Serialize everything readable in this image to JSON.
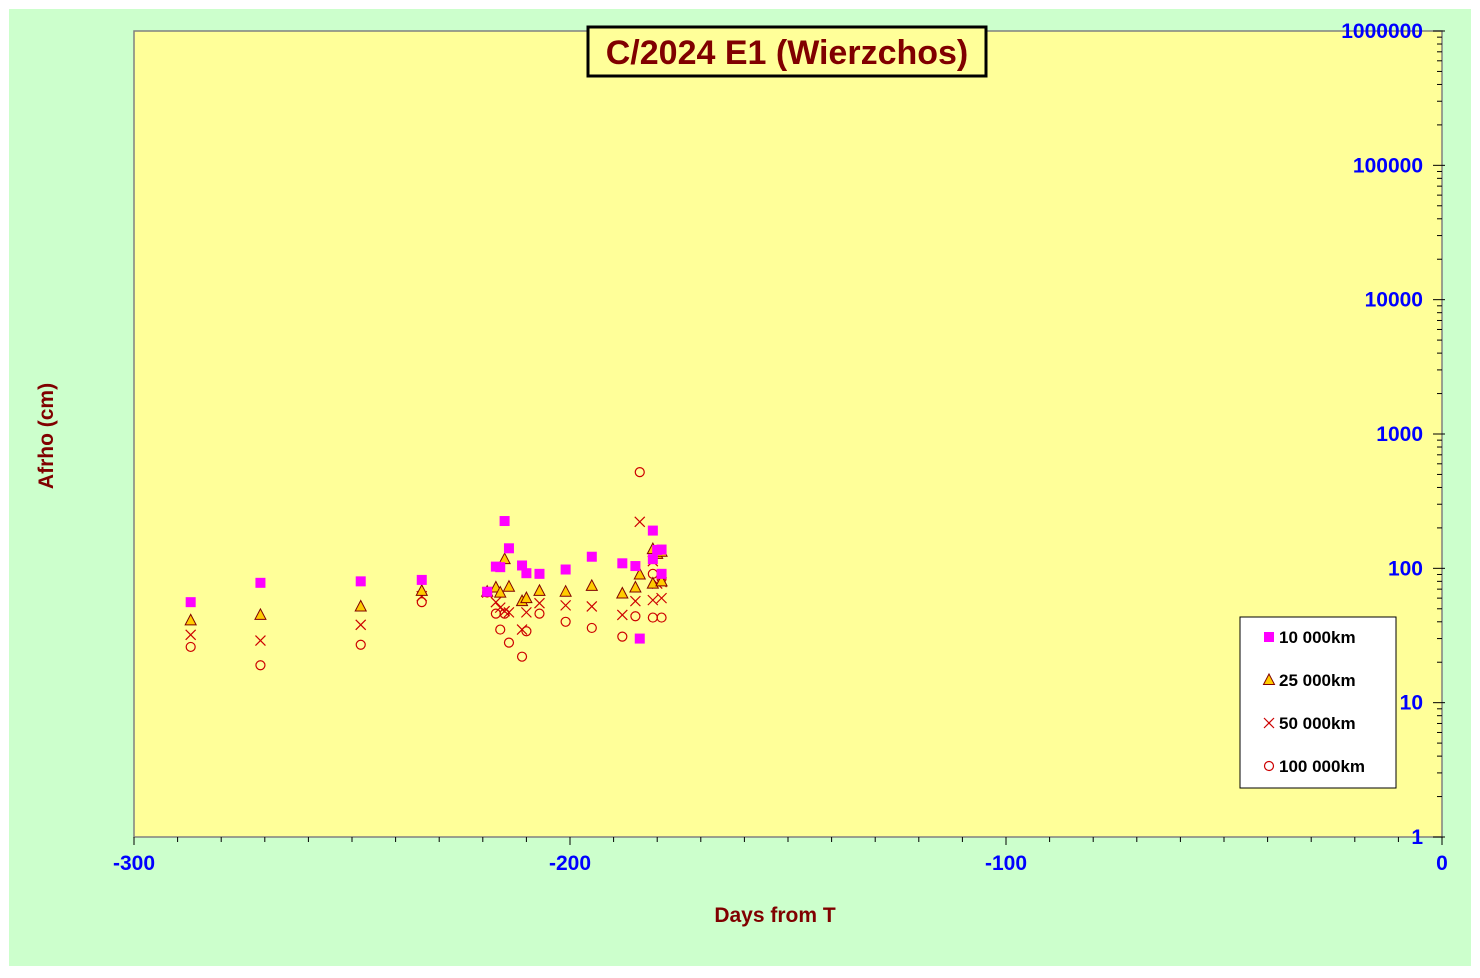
{
  "colors": {
    "outer_background": "#ccffcc",
    "plot_background": "#ffff99",
    "title_text": "#800000",
    "axis_label_text": "#800000",
    "tick_label_text": "#0000ff",
    "marker_10000": "#ff00ff",
    "marker_25000_fill": "#ffcc00",
    "marker_25000_edge": "#800000",
    "marker_50000": "#cc0000",
    "marker_100000": "#cc0000"
  },
  "chart_data": {
    "type": "scatter",
    "title": "C/2024 E1 (Wierzchos)",
    "xlabel": "Days from T",
    "ylabel": "Afrho (cm)",
    "xlim": [
      -300,
      0
    ],
    "ylim": [
      1,
      1000000
    ],
    "y_scale": "log",
    "y_axis_side": "right",
    "grid": false,
    "legend_position": "bottom-right",
    "x_ticks": [
      "-300",
      "-200",
      "-100",
      "0"
    ],
    "y_ticks": [
      "1",
      "10",
      "100",
      "1000",
      "10000",
      "100000",
      "1000000"
    ],
    "series": [
      {
        "name": "10 000km",
        "marker": "filled-square",
        "points": [
          [
            -287,
            56
          ],
          [
            -271,
            78
          ],
          [
            -248,
            80
          ],
          [
            -234,
            82
          ],
          [
            -219,
            67
          ],
          [
            -217,
            103
          ],
          [
            -216,
            102
          ],
          [
            -215,
            225
          ],
          [
            -214,
            141
          ],
          [
            -211,
            105
          ],
          [
            -210,
            92
          ],
          [
            -207,
            91
          ],
          [
            -201,
            98
          ],
          [
            -195,
            122
          ],
          [
            -188,
            109
          ],
          [
            -185,
            104
          ],
          [
            -184,
            30
          ],
          [
            -181,
            191
          ],
          [
            -181,
            117
          ],
          [
            -180,
            137
          ],
          [
            -179,
            138
          ],
          [
            -179,
            91
          ]
        ]
      },
      {
        "name": "25 000km",
        "marker": "triangle",
        "points": [
          [
            -287,
            41
          ],
          [
            -271,
            45
          ],
          [
            -248,
            52
          ],
          [
            -234,
            68
          ],
          [
            -219,
            67
          ],
          [
            -217,
            72
          ],
          [
            -216,
            66
          ],
          [
            -215,
            117
          ],
          [
            -214,
            73
          ],
          [
            -211,
            57
          ],
          [
            -210,
            60
          ],
          [
            -207,
            68
          ],
          [
            -201,
            67
          ],
          [
            -195,
            74
          ],
          [
            -188,
            65
          ],
          [
            -185,
            72
          ],
          [
            -184,
            90
          ],
          [
            -181,
            77
          ],
          [
            -181,
            139
          ],
          [
            -180,
            128
          ],
          [
            -179,
            133
          ],
          [
            -179,
            80
          ]
        ]
      },
      {
        "name": "50 000km",
        "marker": "x",
        "points": [
          [
            -287,
            32
          ],
          [
            -271,
            29
          ],
          [
            -248,
            38
          ],
          [
            -234,
            62
          ],
          [
            -219,
            66
          ],
          [
            -217,
            56
          ],
          [
            -216,
            51
          ],
          [
            -215,
            48
          ],
          [
            -214,
            47
          ],
          [
            -211,
            35
          ],
          [
            -210,
            47
          ],
          [
            -207,
            55
          ],
          [
            -201,
            53
          ],
          [
            -195,
            52
          ],
          [
            -188,
            45
          ],
          [
            -185,
            57
          ],
          [
            -184,
            222
          ],
          [
            -181,
            58
          ],
          [
            -181,
            113
          ],
          [
            -180,
            77
          ],
          [
            -179,
            60
          ],
          [
            -179,
            79
          ]
        ]
      },
      {
        "name": "100 000km",
        "marker": "open-circle",
        "points": [
          [
            -287,
            26
          ],
          [
            -271,
            19
          ],
          [
            -248,
            27
          ],
          [
            -234,
            56
          ],
          [
            -219,
            66
          ],
          [
            -217,
            46
          ],
          [
            -216,
            35
          ],
          [
            -215,
            46
          ],
          [
            -214,
            28
          ],
          [
            -211,
            22
          ],
          [
            -210,
            34
          ],
          [
            -207,
            46
          ],
          [
            -201,
            40
          ],
          [
            -195,
            36
          ],
          [
            -188,
            31
          ],
          [
            -185,
            44
          ],
          [
            -184,
            520
          ],
          [
            -181,
            43
          ],
          [
            -181,
            91
          ],
          [
            -180,
            135
          ],
          [
            -179,
            43
          ],
          [
            -179,
            84
          ]
        ]
      }
    ]
  }
}
